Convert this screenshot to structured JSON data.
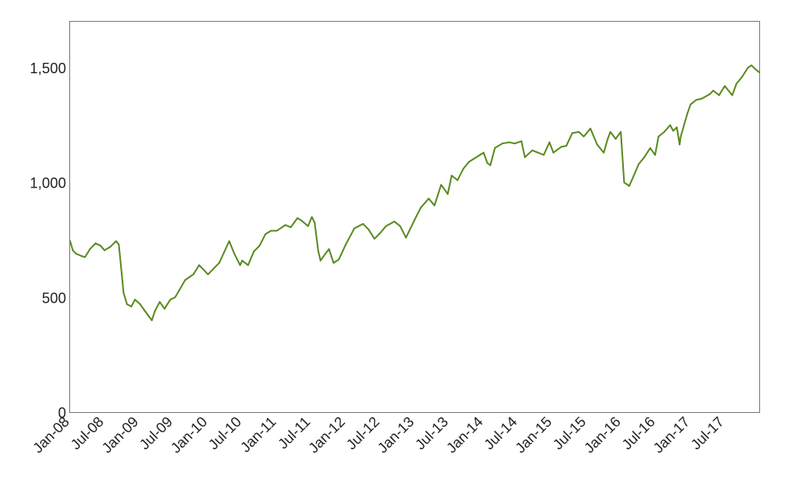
{
  "chart_data": {
    "type": "line",
    "title": "",
    "xlabel": "",
    "ylabel": "",
    "xlim": [
      "2008-01-01",
      "2017-12-31"
    ],
    "ylim": [
      0,
      1700
    ],
    "grid": false,
    "legend": "none",
    "line_color": "#5a8a1f",
    "x_ticks": [
      {
        "date": "2008-01-01",
        "label": "Jan-08"
      },
      {
        "date": "2008-07-01",
        "label": "Jul-08"
      },
      {
        "date": "2009-01-01",
        "label": "Jan-09"
      },
      {
        "date": "2009-07-01",
        "label": "Jul-09"
      },
      {
        "date": "2010-01-01",
        "label": "Jan-10"
      },
      {
        "date": "2010-07-01",
        "label": "Jul-10"
      },
      {
        "date": "2011-01-01",
        "label": "Jan-11"
      },
      {
        "date": "2011-07-01",
        "label": "Jul-11"
      },
      {
        "date": "2012-01-01",
        "label": "Jan-12"
      },
      {
        "date": "2012-07-01",
        "label": "Jul-12"
      },
      {
        "date": "2013-01-01",
        "label": "Jan-13"
      },
      {
        "date": "2013-07-01",
        "label": "Jul-13"
      },
      {
        "date": "2014-01-01",
        "label": "Jan-14"
      },
      {
        "date": "2014-07-01",
        "label": "Jul-14"
      },
      {
        "date": "2015-01-01",
        "label": "Jan-15"
      },
      {
        "date": "2015-07-01",
        "label": "Jul-15"
      },
      {
        "date": "2016-01-01",
        "label": "Jan-16"
      },
      {
        "date": "2016-07-01",
        "label": "Jul-16"
      },
      {
        "date": "2017-01-01",
        "label": "Jan-17"
      },
      {
        "date": "2017-07-01",
        "label": "Jul-17"
      }
    ],
    "y_ticks": [
      {
        "value": 0,
        "label": "0"
      },
      {
        "value": 500,
        "label": "500"
      },
      {
        "value": 1000,
        "label": "1,000"
      },
      {
        "value": 1500,
        "label": "1,500"
      }
    ],
    "series": [
      {
        "color": "#5a8a1f",
        "x": [
          "2008-01-01",
          "2008-01-15",
          "2008-02-01",
          "2008-03-01",
          "2008-03-20",
          "2008-04-15",
          "2008-05-15",
          "2008-06-10",
          "2008-07-01",
          "2008-08-01",
          "2008-09-01",
          "2008-09-15",
          "2008-10-01",
          "2008-10-10",
          "2008-10-28",
          "2008-11-20",
          "2008-12-10",
          "2009-01-06",
          "2009-02-01",
          "2009-03-09",
          "2009-03-25",
          "2009-04-20",
          "2009-05-15",
          "2009-06-15",
          "2009-07-10",
          "2009-08-01",
          "2009-09-01",
          "2009-10-15",
          "2009-11-15",
          "2010-01-01",
          "2010-02-05",
          "2010-03-01",
          "2010-04-23",
          "2010-05-20",
          "2010-06-20",
          "2010-07-01",
          "2010-08-01",
          "2010-09-01",
          "2010-10-01",
          "2010-11-01",
          "2010-12-01",
          "2011-01-01",
          "2011-02-15",
          "2011-03-15",
          "2011-04-20",
          "2011-05-10",
          "2011-06-15",
          "2011-07-05",
          "2011-07-20",
          "2011-08-08",
          "2011-08-20",
          "2011-09-15",
          "2011-10-04",
          "2011-10-28",
          "2011-11-25",
          "2012-01-01",
          "2012-02-15",
          "2012-04-01",
          "2012-05-01",
          "2012-06-01",
          "2012-07-01",
          "2012-08-01",
          "2012-09-14",
          "2012-10-15",
          "2012-11-15",
          "2013-01-01",
          "2013-02-01",
          "2013-03-15",
          "2013-04-15",
          "2013-05-20",
          "2013-06-24",
          "2013-07-15",
          "2013-08-15",
          "2013-09-15",
          "2013-10-15",
          "2013-12-31",
          "2014-01-20",
          "2014-02-05",
          "2014-03-01",
          "2014-04-10",
          "2014-05-15",
          "2014-06-15",
          "2014-07-20",
          "2014-08-07",
          "2014-09-15",
          "2014-10-15",
          "2014-11-15",
          "2014-12-15",
          "2015-01-05",
          "2015-02-15",
          "2015-03-15",
          "2015-04-15",
          "2015-05-20",
          "2015-06-15",
          "2015-07-20",
          "2015-08-25",
          "2015-09-29",
          "2015-10-20",
          "2015-11-03",
          "2015-12-01",
          "2015-12-28",
          "2016-01-15",
          "2016-02-11",
          "2016-03-01",
          "2016-04-01",
          "2016-05-01",
          "2016-06-01",
          "2016-06-27",
          "2016-07-15",
          "2016-08-15",
          "2016-09-15",
          "2016-10-01",
          "2016-10-20",
          "2016-11-04",
          "2016-11-10",
          "2016-12-01",
          "2016-12-15",
          "2017-01-01",
          "2017-02-01",
          "2017-03-01",
          "2017-04-13",
          "2017-05-01",
          "2017-06-01",
          "2017-07-01",
          "2017-08-10",
          "2017-09-01",
          "2017-10-01",
          "2017-11-01",
          "2017-11-20",
          "2017-12-15",
          "2017-12-31"
        ],
        "values": [
          745,
          705,
          690,
          680,
          675,
          710,
          735,
          725,
          705,
          720,
          745,
          730,
          600,
          520,
          470,
          460,
          490,
          470,
          440,
          400,
          440,
          480,
          450,
          490,
          500,
          530,
          575,
          600,
          640,
          600,
          630,
          650,
          745,
          690,
          640,
          660,
          640,
          700,
          725,
          775,
          790,
          790,
          815,
          805,
          845,
          835,
          810,
          850,
          825,
          700,
          660,
          690,
          710,
          650,
          665,
          730,
          800,
          820,
          795,
          755,
          780,
          810,
          830,
          810,
          760,
          840,
          890,
          930,
          900,
          990,
          950,
          1030,
          1010,
          1060,
          1090,
          1130,
          1085,
          1075,
          1150,
          1170,
          1175,
          1170,
          1180,
          1110,
          1140,
          1130,
          1120,
          1175,
          1130,
          1155,
          1160,
          1215,
          1220,
          1200,
          1235,
          1165,
          1130,
          1190,
          1220,
          1190,
          1220,
          1000,
          985,
          1020,
          1080,
          1110,
          1150,
          1120,
          1200,
          1220,
          1250,
          1225,
          1240,
          1165,
          1200,
          1260,
          1300,
          1340,
          1360,
          1365,
          1385,
          1400,
          1380,
          1420,
          1380,
          1430,
          1460,
          1500,
          1510,
          1490,
          1480
        ]
      }
    ]
  }
}
